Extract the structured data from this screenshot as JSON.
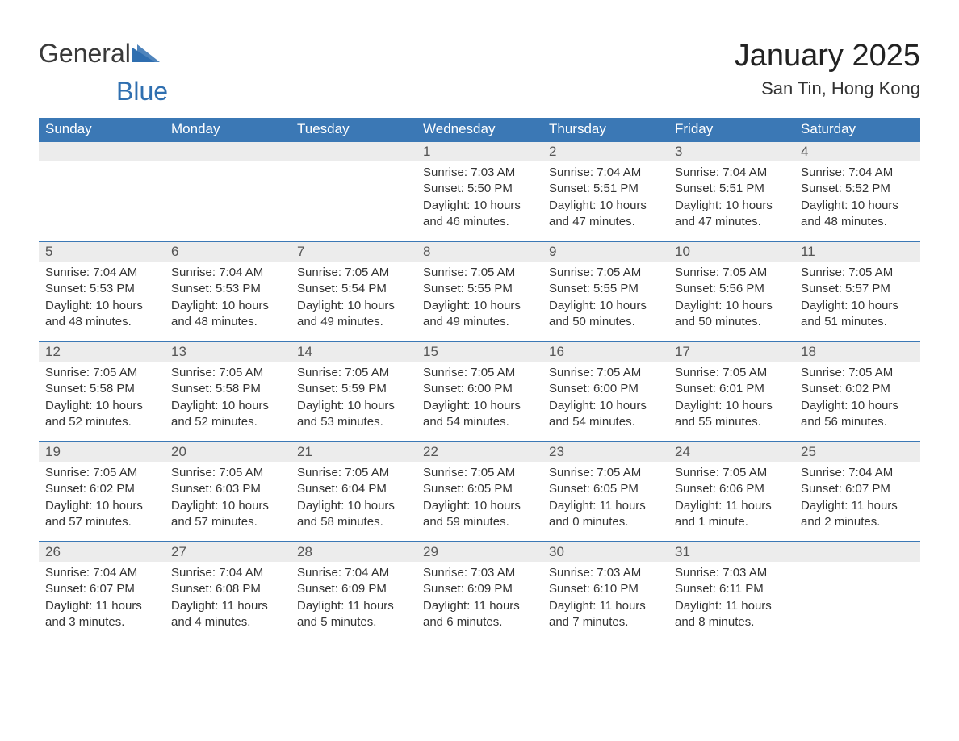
{
  "brand": {
    "word1": "General",
    "word2": "Blue"
  },
  "title": "January 2025",
  "location": "San Tin, Hong Kong",
  "colors": {
    "header_bg": "#3b78b5",
    "header_fg": "#ffffff",
    "daynum_bg": "#ececec",
    "daynum_border": "#3b78b5",
    "text": "#333333",
    "brand_gray": "#3a3a3a",
    "brand_blue": "#2f6fb0",
    "page_bg": "#ffffff"
  },
  "typography": {
    "month_title_pt": 38,
    "location_pt": 22,
    "weekday_pt": 17,
    "daynum_pt": 17,
    "body_pt": 15
  },
  "calendar": {
    "type": "table",
    "columns": [
      "Sunday",
      "Monday",
      "Tuesday",
      "Wednesday",
      "Thursday",
      "Friday",
      "Saturday"
    ],
    "weeks": [
      [
        null,
        null,
        null,
        {
          "n": "1",
          "sunrise": "7:03 AM",
          "sunset": "5:50 PM",
          "daylight": "10 hours and 46 minutes."
        },
        {
          "n": "2",
          "sunrise": "7:04 AM",
          "sunset": "5:51 PM",
          "daylight": "10 hours and 47 minutes."
        },
        {
          "n": "3",
          "sunrise": "7:04 AM",
          "sunset": "5:51 PM",
          "daylight": "10 hours and 47 minutes."
        },
        {
          "n": "4",
          "sunrise": "7:04 AM",
          "sunset": "5:52 PM",
          "daylight": "10 hours and 48 minutes."
        }
      ],
      [
        {
          "n": "5",
          "sunrise": "7:04 AM",
          "sunset": "5:53 PM",
          "daylight": "10 hours and 48 minutes."
        },
        {
          "n": "6",
          "sunrise": "7:04 AM",
          "sunset": "5:53 PM",
          "daylight": "10 hours and 48 minutes."
        },
        {
          "n": "7",
          "sunrise": "7:05 AM",
          "sunset": "5:54 PM",
          "daylight": "10 hours and 49 minutes."
        },
        {
          "n": "8",
          "sunrise": "7:05 AM",
          "sunset": "5:55 PM",
          "daylight": "10 hours and 49 minutes."
        },
        {
          "n": "9",
          "sunrise": "7:05 AM",
          "sunset": "5:55 PM",
          "daylight": "10 hours and 50 minutes."
        },
        {
          "n": "10",
          "sunrise": "7:05 AM",
          "sunset": "5:56 PM",
          "daylight": "10 hours and 50 minutes."
        },
        {
          "n": "11",
          "sunrise": "7:05 AM",
          "sunset": "5:57 PM",
          "daylight": "10 hours and 51 minutes."
        }
      ],
      [
        {
          "n": "12",
          "sunrise": "7:05 AM",
          "sunset": "5:58 PM",
          "daylight": "10 hours and 52 minutes."
        },
        {
          "n": "13",
          "sunrise": "7:05 AM",
          "sunset": "5:58 PM",
          "daylight": "10 hours and 52 minutes."
        },
        {
          "n": "14",
          "sunrise": "7:05 AM",
          "sunset": "5:59 PM",
          "daylight": "10 hours and 53 minutes."
        },
        {
          "n": "15",
          "sunrise": "7:05 AM",
          "sunset": "6:00 PM",
          "daylight": "10 hours and 54 minutes."
        },
        {
          "n": "16",
          "sunrise": "7:05 AM",
          "sunset": "6:00 PM",
          "daylight": "10 hours and 54 minutes."
        },
        {
          "n": "17",
          "sunrise": "7:05 AM",
          "sunset": "6:01 PM",
          "daylight": "10 hours and 55 minutes."
        },
        {
          "n": "18",
          "sunrise": "7:05 AM",
          "sunset": "6:02 PM",
          "daylight": "10 hours and 56 minutes."
        }
      ],
      [
        {
          "n": "19",
          "sunrise": "7:05 AM",
          "sunset": "6:02 PM",
          "daylight": "10 hours and 57 minutes."
        },
        {
          "n": "20",
          "sunrise": "7:05 AM",
          "sunset": "6:03 PM",
          "daylight": "10 hours and 57 minutes."
        },
        {
          "n": "21",
          "sunrise": "7:05 AM",
          "sunset": "6:04 PM",
          "daylight": "10 hours and 58 minutes."
        },
        {
          "n": "22",
          "sunrise": "7:05 AM",
          "sunset": "6:05 PM",
          "daylight": "10 hours and 59 minutes."
        },
        {
          "n": "23",
          "sunrise": "7:05 AM",
          "sunset": "6:05 PM",
          "daylight": "11 hours and 0 minutes."
        },
        {
          "n": "24",
          "sunrise": "7:05 AM",
          "sunset": "6:06 PM",
          "daylight": "11 hours and 1 minute."
        },
        {
          "n": "25",
          "sunrise": "7:04 AM",
          "sunset": "6:07 PM",
          "daylight": "11 hours and 2 minutes."
        }
      ],
      [
        {
          "n": "26",
          "sunrise": "7:04 AM",
          "sunset": "6:07 PM",
          "daylight": "11 hours and 3 minutes."
        },
        {
          "n": "27",
          "sunrise": "7:04 AM",
          "sunset": "6:08 PM",
          "daylight": "11 hours and 4 minutes."
        },
        {
          "n": "28",
          "sunrise": "7:04 AM",
          "sunset": "6:09 PM",
          "daylight": "11 hours and 5 minutes."
        },
        {
          "n": "29",
          "sunrise": "7:03 AM",
          "sunset": "6:09 PM",
          "daylight": "11 hours and 6 minutes."
        },
        {
          "n": "30",
          "sunrise": "7:03 AM",
          "sunset": "6:10 PM",
          "daylight": "11 hours and 7 minutes."
        },
        {
          "n": "31",
          "sunrise": "7:03 AM",
          "sunset": "6:11 PM",
          "daylight": "11 hours and 8 minutes."
        },
        null
      ]
    ],
    "labels": {
      "sunrise": "Sunrise:",
      "sunset": "Sunset:",
      "daylight": "Daylight:"
    }
  }
}
